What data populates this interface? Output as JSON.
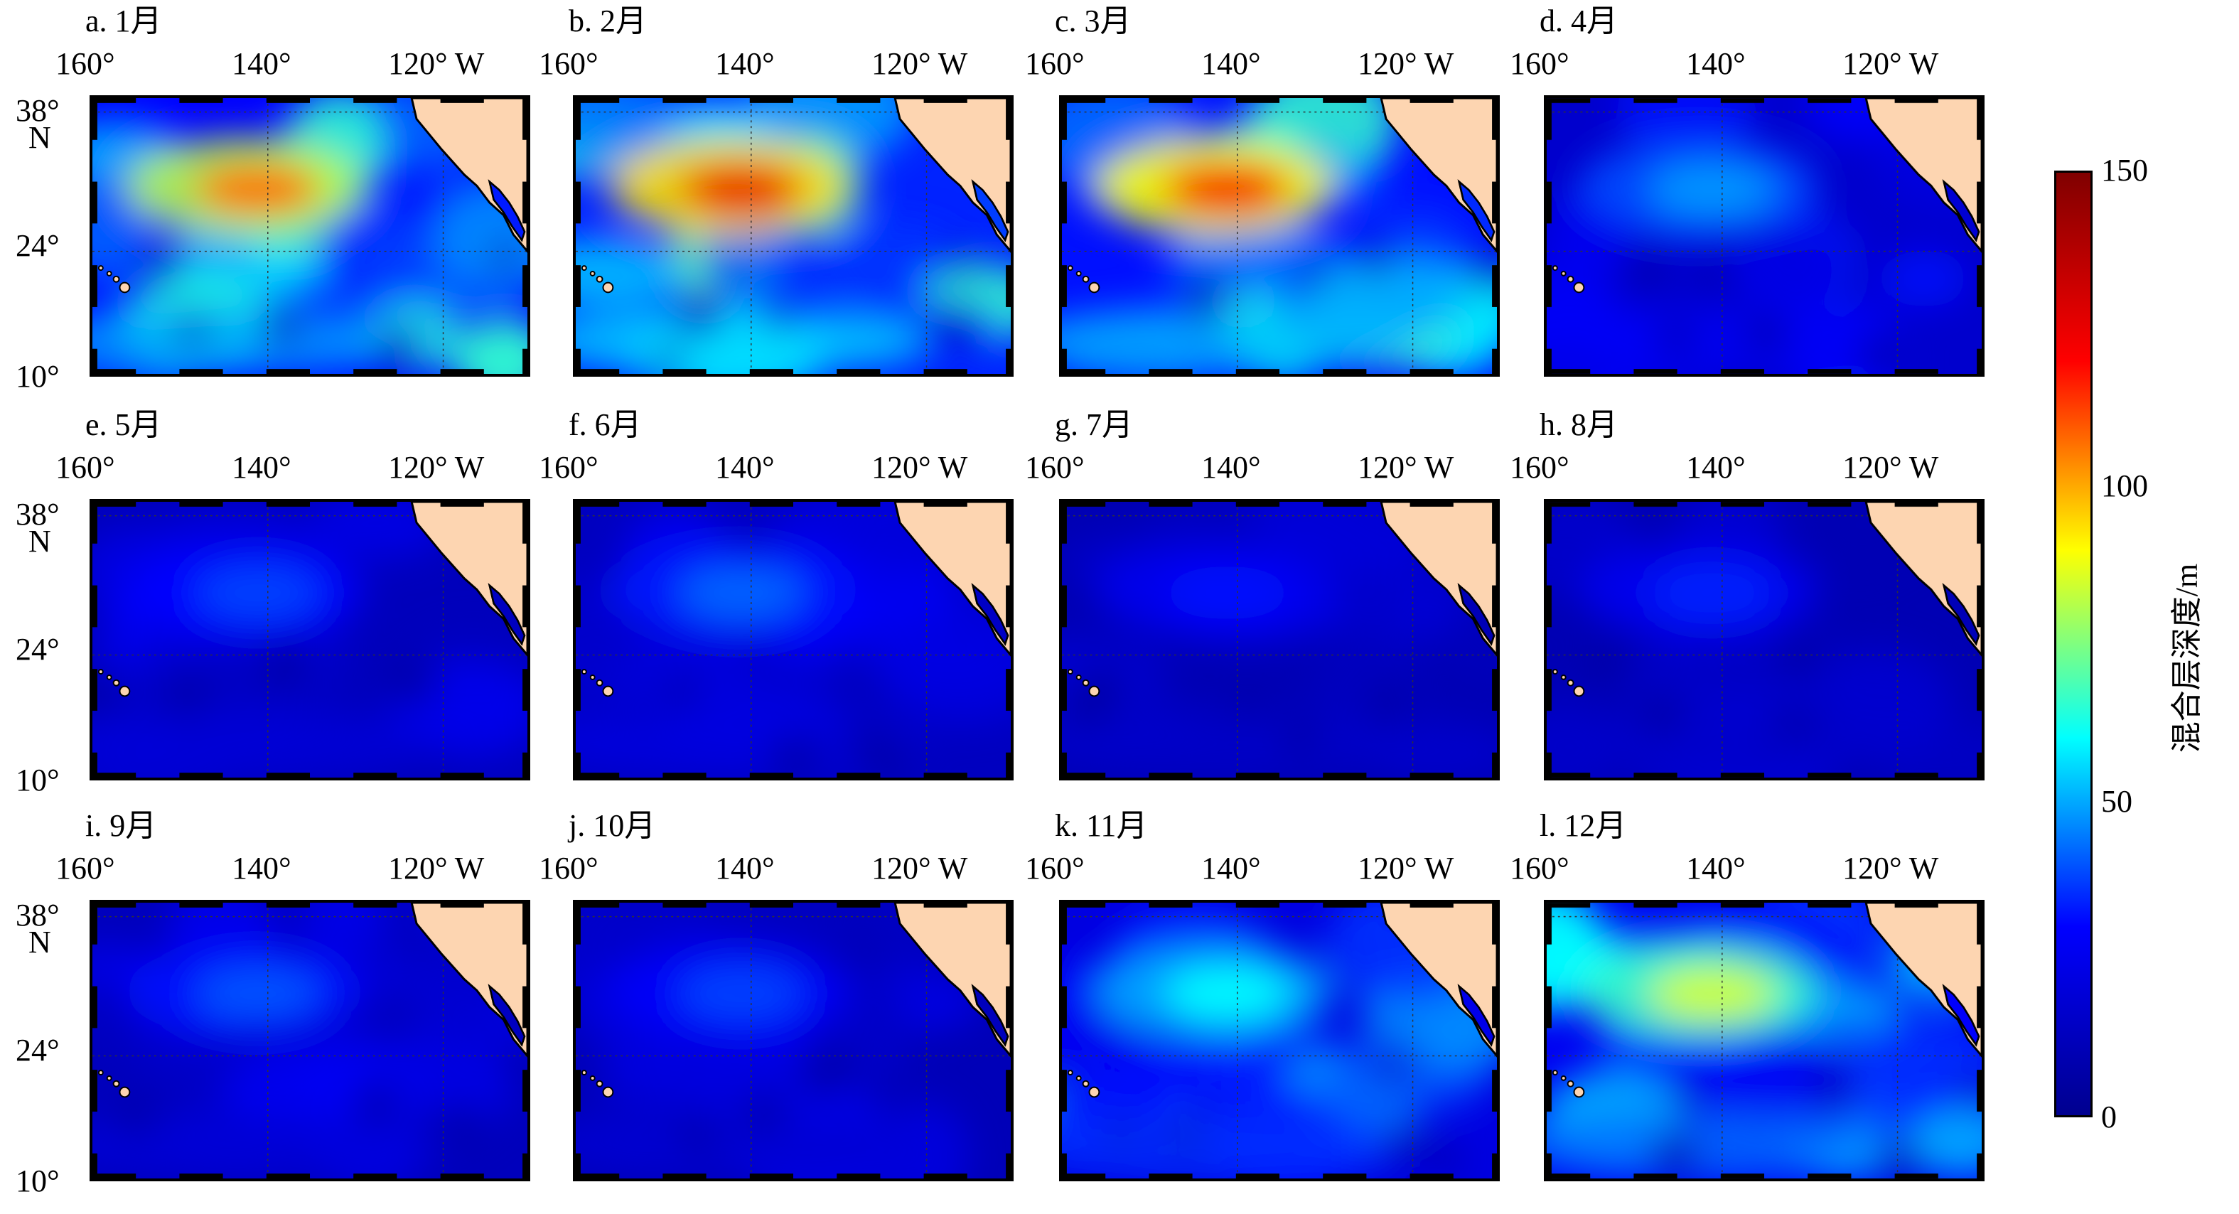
{
  "panels": [
    {
      "title": "a. 1月",
      "mld_mean": 55,
      "mld_peak": 108
    },
    {
      "title": "b. 2月",
      "mld_mean": 62,
      "mld_peak": 125
    },
    {
      "title": "c. 3月",
      "mld_mean": 58,
      "mld_peak": 122
    },
    {
      "title": "d. 4月",
      "mld_mean": 30,
      "mld_peak": 48
    },
    {
      "title": "e. 5月",
      "mld_mean": 22,
      "mld_peak": 38
    },
    {
      "title": "f. 6月",
      "mld_mean": 24,
      "mld_peak": 42
    },
    {
      "title": "g. 7月",
      "mld_mean": 18,
      "mld_peak": 32
    },
    {
      "title": "h. 8月",
      "mld_mean": 18,
      "mld_peak": 34
    },
    {
      "title": "i. 9月",
      "mld_mean": 22,
      "mld_peak": 40
    },
    {
      "title": "j. 10月",
      "mld_mean": 20,
      "mld_peak": 38
    },
    {
      "title": "k. 11月",
      "mld_mean": 40,
      "mld_peak": 60
    },
    {
      "title": "l. 12月",
      "mld_mean": 48,
      "mld_peak": 85
    }
  ],
  "axes": {
    "lon_labels": [
      "160°",
      "140°",
      "120° W"
    ],
    "lat_labels": [
      "38°",
      "N",
      "24°",
      "10°"
    ]
  },
  "colorbar": {
    "label": "混合层深度/m",
    "ticks": [
      "150",
      "100",
      "50",
      "0"
    ],
    "range": [
      0,
      150
    ],
    "colors": [
      "#00008f",
      "#0000ff",
      "#00ffff",
      "#ffff00",
      "#ff0000",
      "#800000"
    ]
  },
  "land_color": "#fdd5b1"
}
